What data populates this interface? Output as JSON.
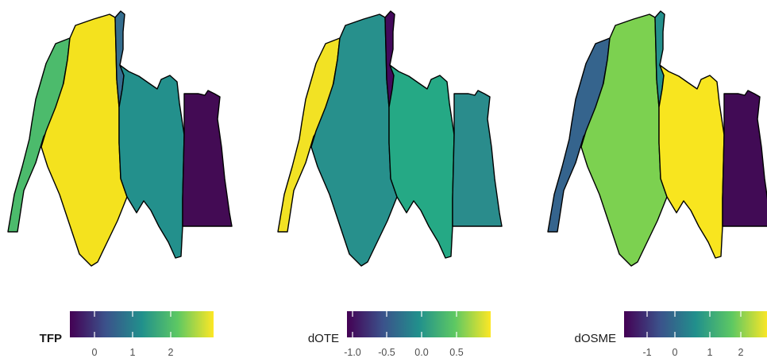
{
  "panels": [
    {
      "id": "tfp",
      "legend": {
        "title": "TFP",
        "bold": true,
        "ticks": [
          "0",
          "1",
          "2"
        ]
      },
      "region_colors": [
        "#4CBB6C",
        "#F4E21E",
        "#356E8F",
        "#23908C",
        "#430B54"
      ]
    },
    {
      "id": "dote",
      "legend": {
        "title": "dOTE",
        "bold": false,
        "ticks": [
          "-1.0",
          "-0.5",
          "0.0",
          "0.5"
        ]
      },
      "region_colors": [
        "#F2E224",
        "#27908C",
        "#43095B",
        "#25A985",
        "#2A8C8C"
      ]
    },
    {
      "id": "dosme",
      "legend": {
        "title": "dOSME",
        "bold": false,
        "ticks": [
          "-1",
          "0",
          "1",
          "2"
        ]
      },
      "region_colors": [
        "#35648D",
        "#7CD150",
        "#24908C",
        "#F8E51F",
        "#410B55"
      ]
    }
  ],
  "colorscale": {
    "name": "viridis",
    "stops": [
      "#440154",
      "#3B528B",
      "#21908C",
      "#5DC863",
      "#FDE725"
    ]
  }
}
